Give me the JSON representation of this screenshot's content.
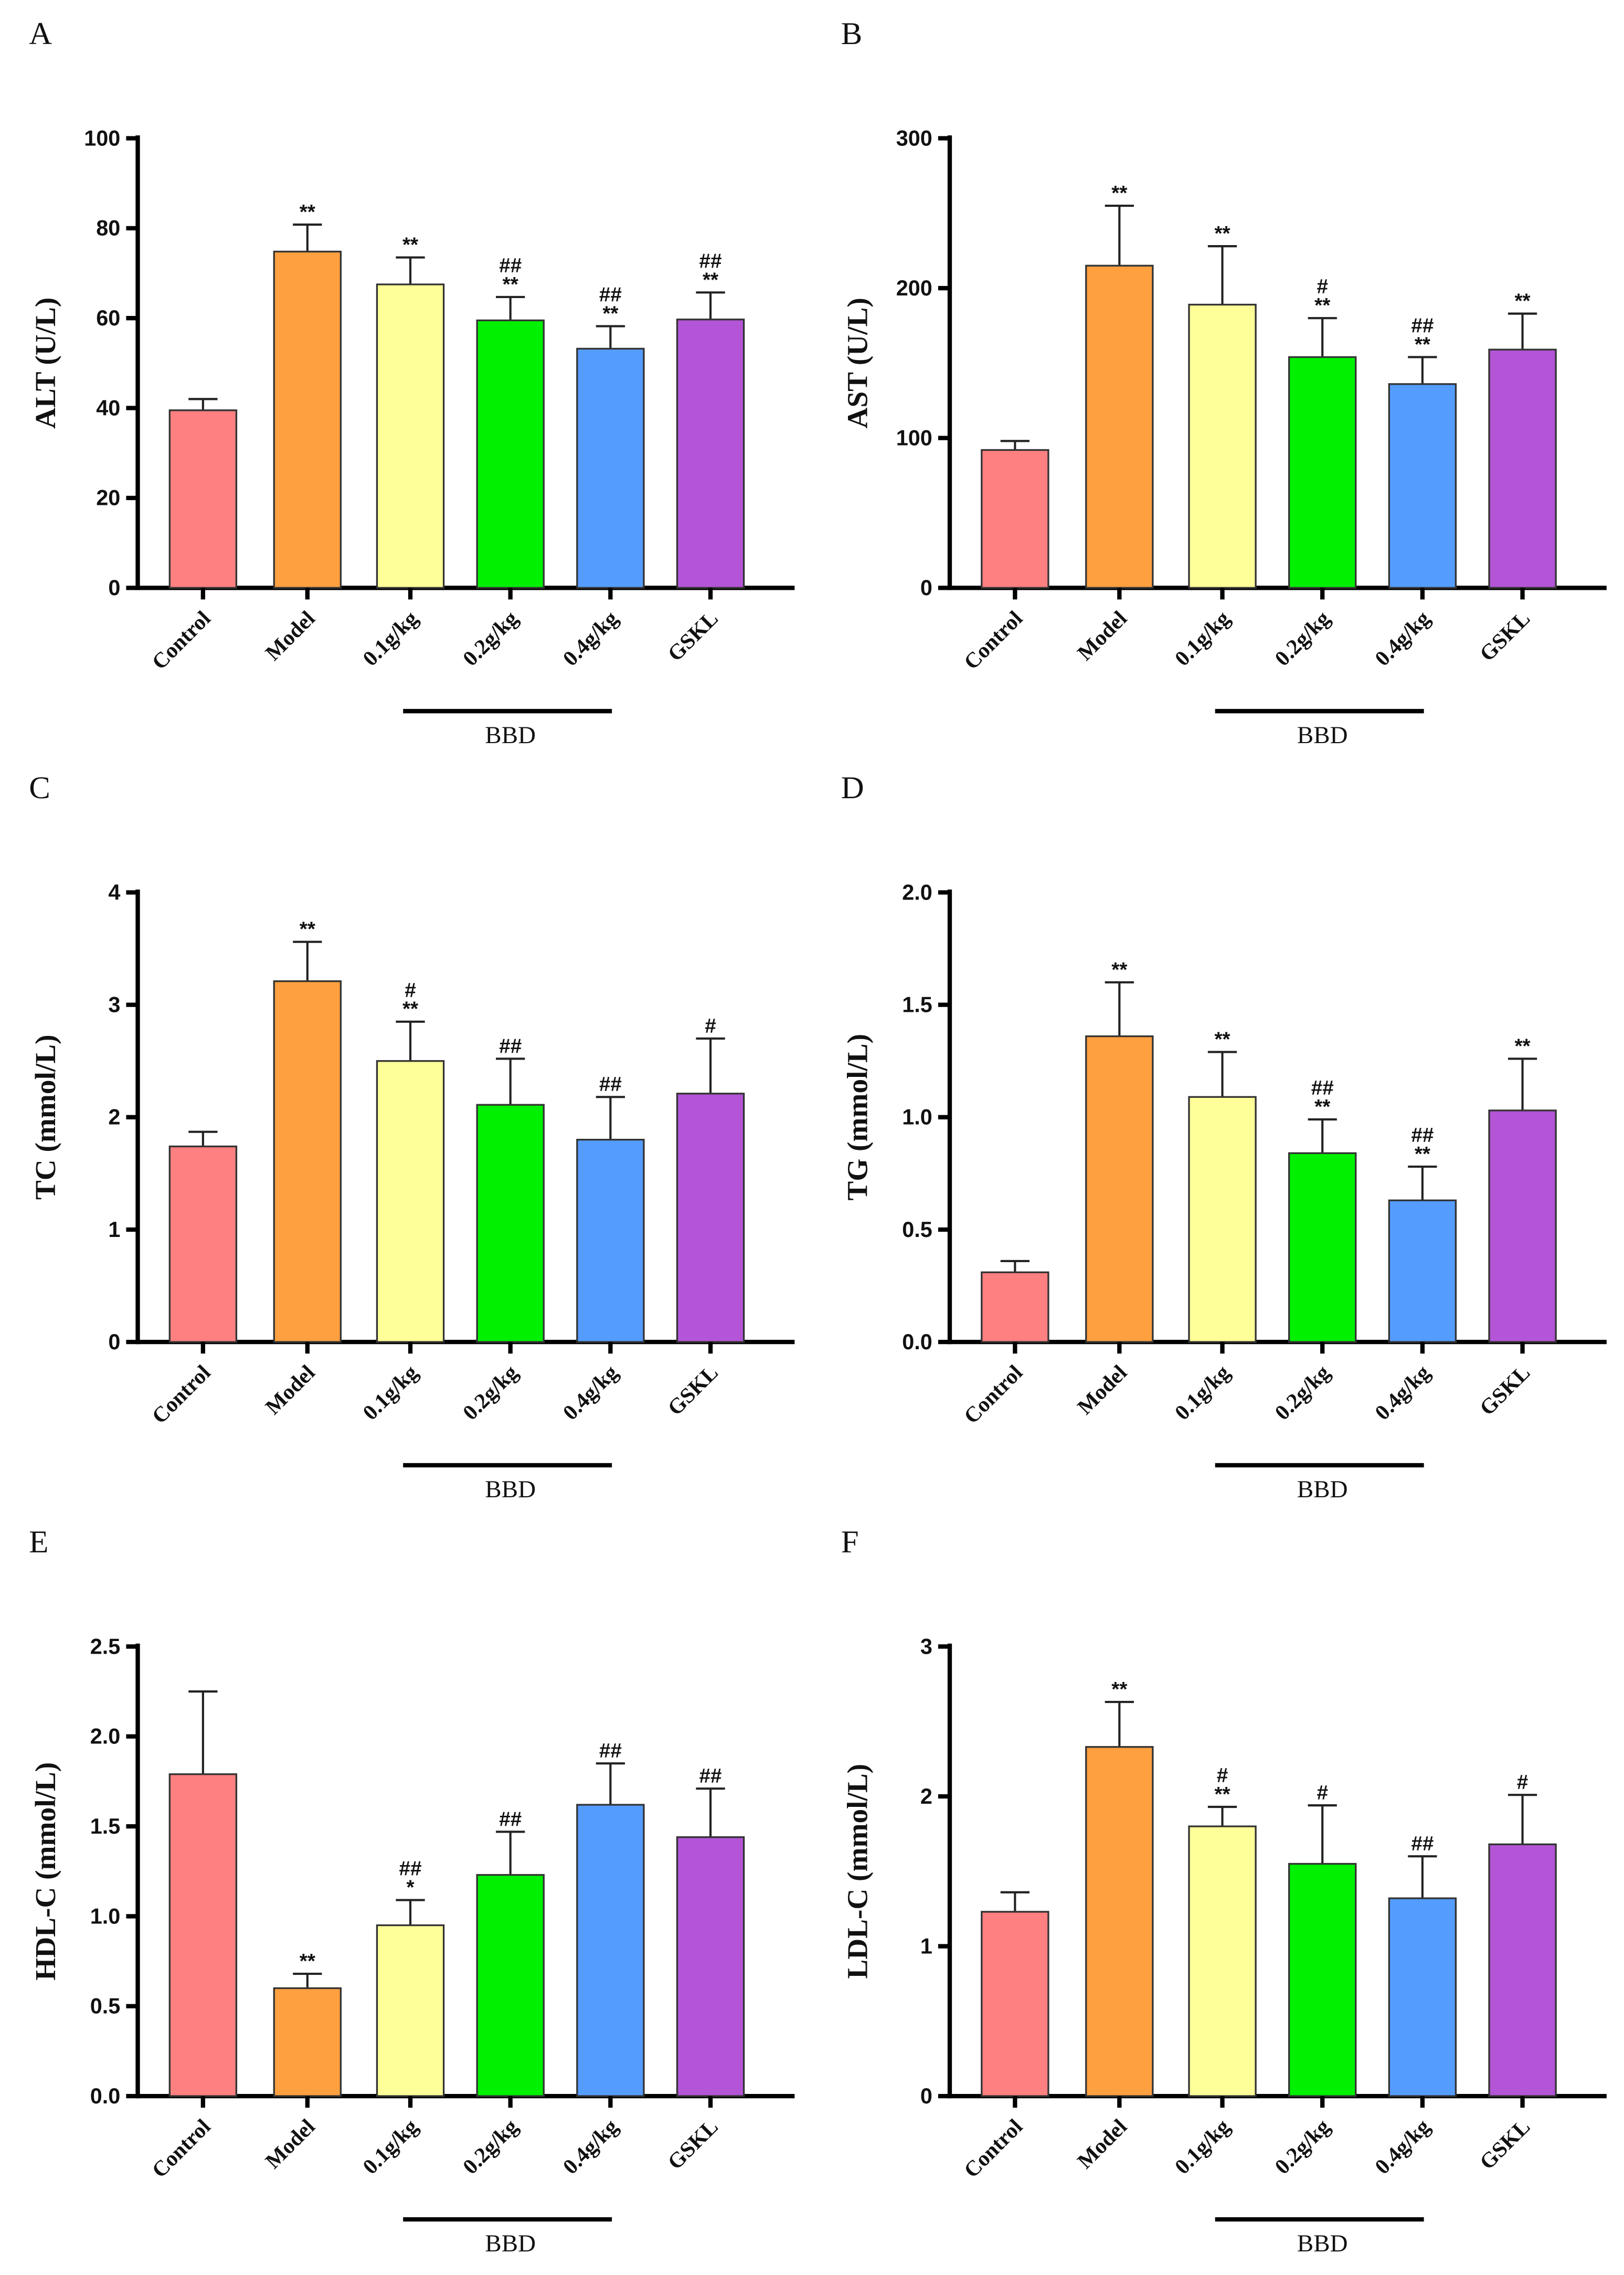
{
  "chart_data": [
    {
      "type": "bar",
      "panel": "A",
      "ylabel": "ALT (U/L)",
      "ylim": [
        0,
        100
      ],
      "yticks": [
        0,
        20,
        40,
        60,
        80,
        100
      ],
      "tick_labels": [
        "0",
        "20",
        "40",
        "60",
        "80",
        "100"
      ],
      "categories": [
        "Control",
        "Model",
        "0.1g/kg",
        "0.2g/kg",
        "0.4g/kg",
        "GSKL"
      ],
      "values": [
        39.5,
        74.8,
        67.5,
        59.5,
        53.2,
        59.7
      ],
      "errors": [
        2.5,
        6,
        6,
        5.2,
        5,
        6
      ],
      "annotations": [
        [],
        [
          "**"
        ],
        [
          "**"
        ],
        [
          "##",
          "**"
        ],
        [
          "##",
          "**"
        ],
        [
          "##",
          "**"
        ]
      ],
      "group_label": "BBD"
    },
    {
      "type": "bar",
      "panel": "B",
      "ylabel": "AST (U/L)",
      "ylim": [
        0,
        300
      ],
      "yticks": [
        0,
        100,
        200,
        300
      ],
      "tick_labels": [
        "0",
        "100",
        "200",
        "300"
      ],
      "categories": [
        "Control",
        "Model",
        "0.1g/kg",
        "0.2g/kg",
        "0.4g/kg",
        "GSKL"
      ],
      "values": [
        92,
        215,
        189,
        154,
        136,
        159
      ],
      "errors": [
        6,
        40,
        39,
        26,
        18,
        24
      ],
      "annotations": [
        [],
        [
          "**"
        ],
        [
          "**"
        ],
        [
          "#",
          "**"
        ],
        [
          "##",
          "**"
        ],
        [
          "**"
        ]
      ],
      "group_label": "BBD"
    },
    {
      "type": "bar",
      "panel": "C",
      "ylabel": "TC (mmol/L)",
      "ylim": [
        0,
        4
      ],
      "yticks": [
        0,
        1,
        2,
        3,
        4
      ],
      "tick_labels": [
        "0",
        "1",
        "2",
        "3",
        "4"
      ],
      "categories": [
        "Control",
        "Model",
        "0.1g/kg",
        "0.2g/kg",
        "0.4g/kg",
        "GSKL"
      ],
      "values": [
        1.74,
        3.21,
        2.5,
        2.11,
        1.8,
        2.21
      ],
      "errors": [
        0.13,
        0.35,
        0.35,
        0.41,
        0.38,
        0.49
      ],
      "annotations": [
        [],
        [
          "**"
        ],
        [
          "#",
          "**"
        ],
        [
          "##"
        ],
        [
          "##"
        ],
        [
          "#"
        ]
      ],
      "group_label": "BBD"
    },
    {
      "type": "bar",
      "panel": "D",
      "ylabel": "TG (mmol/L)",
      "ylim": [
        0,
        2
      ],
      "yticks": [
        0,
        0.5,
        1,
        1.5,
        2
      ],
      "tick_labels": [
        "0.0",
        "0.5",
        "1.0",
        "1.5",
        "2.0"
      ],
      "categories": [
        "Control",
        "Model",
        "0.1g/kg",
        "0.2g/kg",
        "0.4g/kg",
        "GSKL"
      ],
      "values": [
        0.31,
        1.36,
        1.09,
        0.84,
        0.63,
        1.03
      ],
      "errors": [
        0.05,
        0.24,
        0.2,
        0.15,
        0.15,
        0.23
      ],
      "annotations": [
        [],
        [
          "**"
        ],
        [
          "**"
        ],
        [
          "##",
          "**"
        ],
        [
          "##",
          "**"
        ],
        [
          "**"
        ]
      ],
      "group_label": "BBD"
    },
    {
      "type": "bar",
      "panel": "E",
      "ylabel": "HDL-C (mmol/L)",
      "ylim": [
        0,
        2.5
      ],
      "yticks": [
        0,
        0.5,
        1,
        1.5,
        2,
        2.5
      ],
      "tick_labels": [
        "0.0",
        "0.5",
        "1.0",
        "1.5",
        "2.0",
        "2.5"
      ],
      "categories": [
        "Control",
        "Model",
        "0.1g/kg",
        "0.2g/kg",
        "0.4g/kg",
        "GSKL"
      ],
      "values": [
        1.79,
        0.6,
        0.95,
        1.23,
        1.62,
        1.44
      ],
      "errors": [
        0.46,
        0.08,
        0.14,
        0.24,
        0.23,
        0.27
      ],
      "annotations": [
        [],
        [
          "**"
        ],
        [
          "##",
          "*"
        ],
        [
          "##"
        ],
        [
          "##"
        ],
        [
          "##"
        ]
      ],
      "group_label": "BBD"
    },
    {
      "type": "bar",
      "panel": "F",
      "ylabel": "LDL-C (mmol/L)",
      "ylim": [
        0,
        3
      ],
      "yticks": [
        0,
        1,
        2,
        3
      ],
      "tick_labels": [
        "0",
        "1",
        "2",
        "3"
      ],
      "categories": [
        "Control",
        "Model",
        "0.1g/kg",
        "0.2g/kg",
        "0.4g/kg",
        "GSKL"
      ],
      "values": [
        1.23,
        2.33,
        1.8,
        1.55,
        1.32,
        1.68
      ],
      "errors": [
        0.13,
        0.3,
        0.13,
        0.39,
        0.28,
        0.33
      ],
      "annotations": [
        [],
        [
          "**"
        ],
        [
          "#",
          "**"
        ],
        [
          "#"
        ],
        [
          "##"
        ],
        [
          "#"
        ]
      ],
      "group_label": "BBD"
    }
  ],
  "colors": [
    "#ff8080",
    "#ffa040",
    "#ffff99",
    "#00f000",
    "#559cff",
    "#b355d6"
  ]
}
